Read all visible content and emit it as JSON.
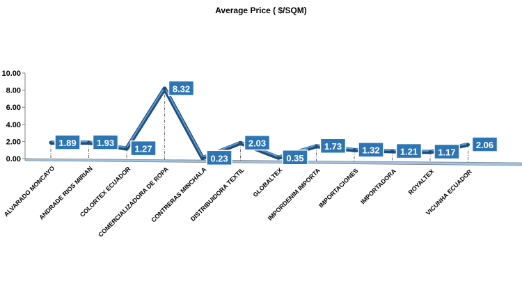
{
  "chart_data": {
    "type": "line",
    "title": "Average Price ( $/SQM)",
    "categories": [
      "ALVARADO MONCAYO",
      "ANDRADE RIOS MIRIAN",
      "COLORTEX ECUADOR",
      "COMERCIALIZADORA DE ROPA",
      "CONTRERAS MINCHALA",
      "DISTRIBUIDORA TEXTIL",
      "GLOBALTEX",
      "IMPORDENIM IMPORTA",
      "IMPORTACIONES",
      "IMPORTADORA",
      "ROYALTEX",
      "VICUNHA ECUADOR"
    ],
    "series": [
      {
        "values": [
          1.89,
          1.93,
          1.27,
          8.32,
          0.23,
          2.03,
          0.35,
          1.73,
          1.32,
          1.21,
          1.17,
          2.06
        ],
        "data_labels": [
          "1.89",
          "1.93",
          "1.27",
          "8.32",
          "0.23",
          "2.03",
          "0.35",
          "1.73",
          "1.32",
          "1.21",
          "1.17",
          "2.06"
        ]
      }
    ],
    "ylim": [
      0,
      10
    ],
    "y_ticks": [
      "0.00",
      "2.00",
      "4.00",
      "6.00",
      "8.00",
      "10.00"
    ],
    "grid": false,
    "legend": "none",
    "colors": {
      "line": "#1f4e79",
      "line_highlight": "#5b9bd5",
      "label_box": "#2e75b6",
      "label_border": "#ffffff",
      "axis": "#7f7f7f",
      "drop_line": "#404040"
    }
  }
}
